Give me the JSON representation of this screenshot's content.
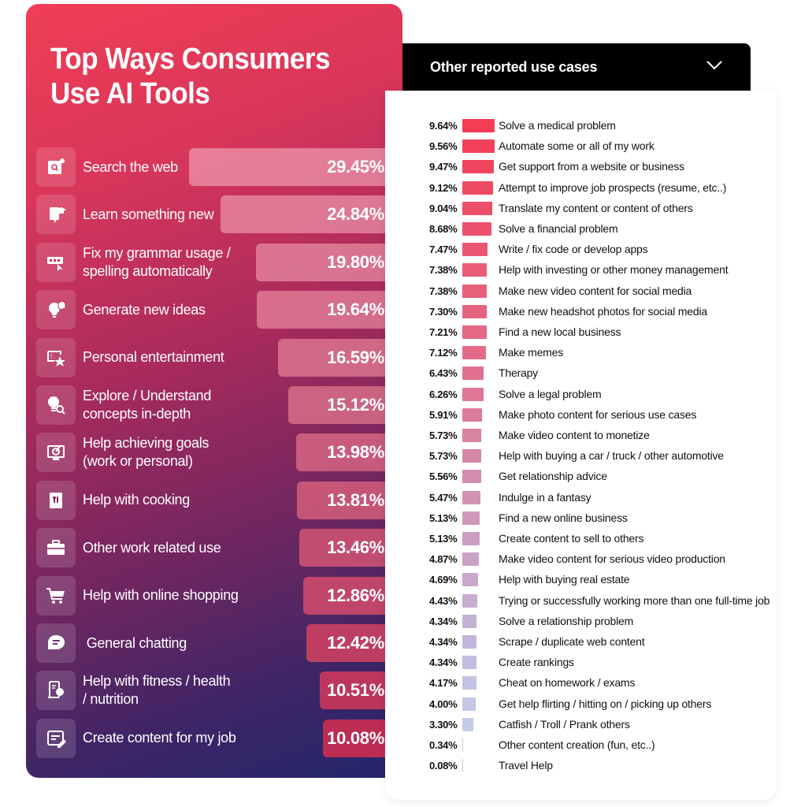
{
  "left_panel": {
    "title_line1": "Top Ways Consumers",
    "title_line2": "Use AI Tools"
  },
  "right_panel": {
    "dropdown_title": "Other reported use cases",
    "dropdown_icon": "chevron-down-icon"
  },
  "colors": {
    "gradient_top": "#f03e55",
    "gradient_bottom": "#22266b",
    "other_bar_high": "#f33d55",
    "other_bar_low": "#c3c9e8",
    "header_bg": "#000000"
  },
  "chart_data": [
    {
      "type": "bar",
      "orientation": "horizontal",
      "title": "Top Ways Consumers Use AI Tools",
      "unit": "%",
      "categories": [
        "Search the web",
        "Learn something new",
        "Fix my grammar usage / spelling automatically",
        "Generate new ideas",
        "Personal entertainment",
        "Explore / Understand concepts in-depth",
        "Help achieving goals (work or personal)",
        "Help with cooking",
        "Other work related use",
        "Help with online shopping",
        "General chatting",
        "Help with fitness / health / nutrition",
        "Create content for my job"
      ],
      "labels_display": [
        [
          "Search the web"
        ],
        [
          "Learn something new"
        ],
        [
          "Fix my grammar usage /",
          "spelling automatically"
        ],
        [
          "Generate new ideas"
        ],
        [
          "Personal entertainment"
        ],
        [
          "Explore / Understand",
          "concepts in-depth"
        ],
        [
          "Help achieving goals",
          "(work or personal)"
        ],
        [
          "Help with cooking"
        ],
        [
          "Other work related use"
        ],
        [
          "Help with online shopping"
        ],
        [
          " General chatting"
        ],
        [
          "Help with fitness / health",
          "/ nutrition"
        ],
        [
          "Create content for my job"
        ]
      ],
      "icons": [
        "search-web-icon",
        "learn-icon",
        "spelling-icon",
        "ideas-icon",
        "entertainment-icon",
        "explore-icon",
        "goals-icon",
        "cooking-icon",
        "briefcase-icon",
        "shopping-cart-icon",
        "chat-icon",
        "fitness-icon",
        "content-edit-icon"
      ],
      "values": [
        29.45,
        24.84,
        19.8,
        19.64,
        16.59,
        15.12,
        13.98,
        13.81,
        13.46,
        12.86,
        12.42,
        10.51,
        10.08
      ],
      "value_labels": [
        "29.45%",
        "24.84%",
        "19.80%",
        "19.64%",
        "16.59%",
        "15.12%",
        "13.98%",
        "13.81%",
        "13.46%",
        "12.86%",
        "12.42%",
        "10.51%",
        "10.08%"
      ]
    },
    {
      "type": "bar",
      "orientation": "horizontal",
      "title": "Other reported use cases",
      "unit": "%",
      "categories": [
        "Solve a medical problem",
        "Automate some or all of my work",
        "Get support from a website or business",
        "Attempt to improve job prospects (resume, etc..)",
        "Translate my content or content of others",
        "Solve a financial problem",
        "Write / fix code or develop apps",
        "Help with investing or other money management",
        "Make new video content for social media",
        "Make new headshot photos for social media",
        "Find a new local business",
        "Make memes",
        "Therapy",
        "Solve a legal problem",
        "Make photo content for serious use cases",
        "Make video content to monetize",
        "Help with buying a car / truck / other automotive",
        "Get relationship advice",
        "Indulge in a fantasy",
        "Find a new online business",
        "Create content to sell to others",
        "Make video content for serious video production",
        "Help with buying real estate",
        "Trying or successfully working more than one full-time job",
        "Solve a relationship problem",
        "Scrape / duplicate web content",
        "Create rankings",
        "Cheat on homework / exams",
        "Get help flirting / hitting on / picking up others",
        "Catfish / Troll / Prank others",
        "Other content creation (fun, etc..)",
        "Travel Help"
      ],
      "values": [
        9.64,
        9.56,
        9.47,
        9.12,
        9.04,
        8.68,
        7.47,
        7.38,
        7.38,
        7.3,
        7.21,
        7.12,
        6.43,
        6.26,
        5.91,
        5.73,
        5.73,
        5.56,
        5.47,
        5.13,
        5.13,
        4.87,
        4.69,
        4.43,
        4.34,
        4.34,
        4.34,
        4.17,
        4.0,
        3.3,
        0.34,
        0.08
      ],
      "value_labels": [
        "9.64%",
        "9.56%",
        "9.47%",
        "9.12%",
        "9.04%",
        "8.68%",
        "7.47%",
        "7.38%",
        "7.38%",
        "7.30%",
        "7.21%",
        "7.12%",
        "6.43%",
        "6.26%",
        "5.91%",
        "5.73%",
        "5.73%",
        "5.56%",
        "5.47%",
        "5.13%",
        "5.13%",
        "4.87%",
        "4.69%",
        "4.43%",
        "4.34%",
        "4.34%",
        "4.34%",
        "4.17%",
        "4.00%",
        "3.30%",
        "0.34%",
        "0.08%"
      ]
    }
  ]
}
